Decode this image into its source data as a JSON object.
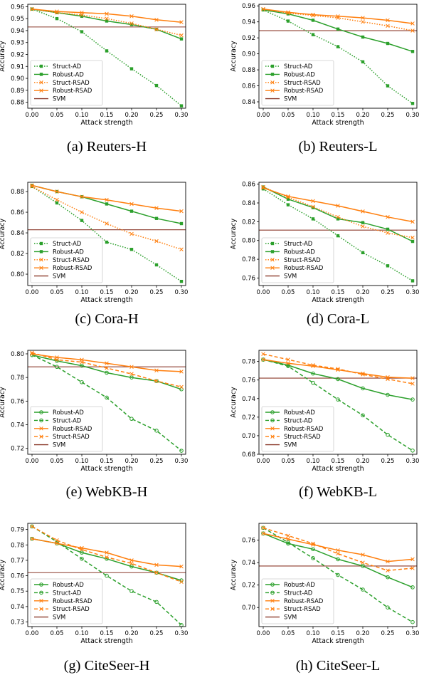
{
  "colors": {
    "green": "#2ca02c",
    "orange": "#ff7f0e",
    "svm": "#8c3a2b",
    "axis": "#000000"
  },
  "chart_data": [
    {
      "type": "line",
      "caption": "(a) Reuters-H",
      "xlabel": "Attack strength",
      "ylabel": "Accuracy",
      "x": [
        0.0,
        0.05,
        0.1,
        0.15,
        0.2,
        0.25,
        0.3
      ],
      "x_ticks": [
        "0.00",
        "0.05",
        "0.10",
        "0.15",
        "0.20",
        "0.25",
        "0.30"
      ],
      "ylim": [
        0.875,
        0.962
      ],
      "y_ticks": [
        0.88,
        0.89,
        0.9,
        0.91,
        0.92,
        0.93,
        0.94,
        0.95,
        0.96
      ],
      "y_tick_labels": [
        "0.88",
        "0.89",
        "0.90",
        "0.91",
        "0.92",
        "0.93",
        "0.94",
        "0.95",
        "0.96"
      ],
      "grid": false,
      "legend": "lower-left",
      "series": [
        {
          "name": "Struct-AD",
          "color": "#2ca02c",
          "style": "dotted",
          "marker": "square",
          "values": [
            0.958,
            0.95,
            0.939,
            0.923,
            0.908,
            0.894,
            0.877
          ]
        },
        {
          "name": "Robust-AD",
          "color": "#2ca02c",
          "style": "solid",
          "marker": "square",
          "values": [
            0.958,
            0.955,
            0.952,
            0.948,
            0.945,
            0.941,
            0.933
          ]
        },
        {
          "name": "Struct-RSAD",
          "color": "#ff7f0e",
          "style": "dotted",
          "marker": "x",
          "values": [
            0.958,
            0.955,
            0.953,
            0.95,
            0.946,
            0.941,
            0.936
          ]
        },
        {
          "name": "Robust-RSAD",
          "color": "#ff7f0e",
          "style": "solid",
          "marker": "x",
          "values": [
            0.958,
            0.956,
            0.955,
            0.954,
            0.952,
            0.949,
            0.947
          ]
        }
      ],
      "svm": {
        "name": "SVM",
        "value": 0.943
      }
    },
    {
      "type": "line",
      "caption": "(b) Reuters-L",
      "xlabel": "Attack strength",
      "ylabel": "Accuracy",
      "x": [
        0.0,
        0.05,
        0.1,
        0.15,
        0.2,
        0.25,
        0.3
      ],
      "x_ticks": [
        "0.00",
        "0.05",
        "0.10",
        "0.15",
        "0.20",
        "0.25",
        "0.30"
      ],
      "ylim": [
        0.832,
        0.962
      ],
      "y_ticks": [
        0.84,
        0.86,
        0.88,
        0.9,
        0.92,
        0.94,
        0.96
      ],
      "y_tick_labels": [
        "0.84",
        "0.86",
        "0.88",
        "0.90",
        "0.92",
        "0.94",
        "0.96"
      ],
      "grid": false,
      "legend": "lower-left",
      "series": [
        {
          "name": "Struct-AD",
          "color": "#2ca02c",
          "style": "dotted",
          "marker": "square",
          "values": [
            0.955,
            0.941,
            0.924,
            0.909,
            0.89,
            0.86,
            0.838
          ]
        },
        {
          "name": "Robust-AD",
          "color": "#2ca02c",
          "style": "solid",
          "marker": "square",
          "values": [
            0.955,
            0.95,
            0.942,
            0.931,
            0.921,
            0.913,
            0.903
          ]
        },
        {
          "name": "Struct-RSAD",
          "color": "#ff7f0e",
          "style": "dotted",
          "marker": "x",
          "values": [
            0.956,
            0.951,
            0.948,
            0.945,
            0.94,
            0.935,
            0.929
          ]
        },
        {
          "name": "Robust-RSAD",
          "color": "#ff7f0e",
          "style": "solid",
          "marker": "x",
          "values": [
            0.956,
            0.952,
            0.949,
            0.947,
            0.945,
            0.942,
            0.938
          ]
        }
      ],
      "svm": {
        "name": "SVM",
        "value": 0.929
      }
    },
    {
      "type": "line",
      "caption": "(c) Cora-H",
      "xlabel": "Attack strength",
      "ylabel": "Accuracy",
      "x": [
        0.0,
        0.05,
        0.1,
        0.15,
        0.2,
        0.25,
        0.3
      ],
      "x_ticks": [
        "0.00",
        "0.05",
        "0.10",
        "0.15",
        "0.20",
        "0.25",
        "0.30"
      ],
      "ylim": [
        0.789,
        0.889
      ],
      "y_ticks": [
        0.8,
        0.82,
        0.84,
        0.86,
        0.88
      ],
      "y_tick_labels": [
        "0.80",
        "0.82",
        "0.84",
        "0.86",
        "0.88"
      ],
      "grid": false,
      "legend": "lower-left",
      "series": [
        {
          "name": "Struct-AD",
          "color": "#2ca02c",
          "style": "dotted",
          "marker": "square",
          "values": [
            0.885,
            0.869,
            0.852,
            0.831,
            0.824,
            0.809,
            0.793
          ]
        },
        {
          "name": "Robust-AD",
          "color": "#2ca02c",
          "style": "solid",
          "marker": "square",
          "values": [
            0.886,
            0.88,
            0.875,
            0.868,
            0.861,
            0.854,
            0.849
          ]
        },
        {
          "name": "Struct-RSAD",
          "color": "#ff7f0e",
          "style": "dotted",
          "marker": "x",
          "values": [
            0.885,
            0.872,
            0.86,
            0.849,
            0.839,
            0.832,
            0.824
          ]
        },
        {
          "name": "Robust-RSAD",
          "color": "#ff7f0e",
          "style": "solid",
          "marker": "x",
          "values": [
            0.886,
            0.88,
            0.875,
            0.872,
            0.868,
            0.864,
            0.861
          ]
        }
      ],
      "svm": {
        "name": "SVM",
        "value": 0.843
      }
    },
    {
      "type": "line",
      "caption": "(d) Cora-L",
      "xlabel": "Attack strength",
      "ylabel": "Accuracy",
      "x": [
        0.0,
        0.05,
        0.1,
        0.15,
        0.2,
        0.25,
        0.3
      ],
      "x_ticks": [
        "0.00",
        "0.05",
        "0.10",
        "0.15",
        "0.20",
        "0.25",
        "0.30"
      ],
      "ylim": [
        0.752,
        0.862
      ],
      "y_ticks": [
        0.76,
        0.78,
        0.8,
        0.82,
        0.84,
        0.86
      ],
      "y_tick_labels": [
        "0.76",
        "0.78",
        "0.80",
        "0.82",
        "0.84",
        "0.86"
      ],
      "grid": false,
      "legend": "lower-left",
      "series": [
        {
          "name": "Struct-AD",
          "color": "#2ca02c",
          "style": "dotted",
          "marker": "square",
          "values": [
            0.855,
            0.838,
            0.823,
            0.805,
            0.787,
            0.773,
            0.757
          ]
        },
        {
          "name": "Robust-AD",
          "color": "#2ca02c",
          "style": "solid",
          "marker": "square",
          "values": [
            0.857,
            0.844,
            0.835,
            0.823,
            0.819,
            0.812,
            0.799
          ]
        },
        {
          "name": "Struct-RSAD",
          "color": "#ff7f0e",
          "style": "dotted",
          "marker": "x",
          "values": [
            0.857,
            0.846,
            0.836,
            0.825,
            0.815,
            0.808,
            0.803
          ]
        },
        {
          "name": "Robust-RSAD",
          "color": "#ff7f0e",
          "style": "solid",
          "marker": "x",
          "values": [
            0.856,
            0.847,
            0.842,
            0.837,
            0.831,
            0.825,
            0.82
          ]
        }
      ],
      "svm": {
        "name": "SVM",
        "value": 0.811
      }
    },
    {
      "type": "line",
      "caption": "(e) WebKB-H",
      "xlabel": "Attack strength",
      "ylabel": "Accuracy",
      "x": [
        0.0,
        0.05,
        0.1,
        0.15,
        0.2,
        0.25,
        0.3
      ],
      "x_ticks": [
        "0.00",
        "0.05",
        "0.10",
        "0.15",
        "0.20",
        "0.25",
        "0.30"
      ],
      "ylim": [
        0.715,
        0.803
      ],
      "y_ticks": [
        0.72,
        0.74,
        0.76,
        0.78,
        0.8
      ],
      "y_tick_labels": [
        "0.72",
        "0.74",
        "0.76",
        "0.78",
        "0.80"
      ],
      "grid": false,
      "legend": "lower-left",
      "series": [
        {
          "name": "Robust-AD",
          "color": "#2ca02c",
          "style": "solid",
          "marker": "circle",
          "values": [
            0.799,
            0.794,
            0.79,
            0.784,
            0.78,
            0.777,
            0.77
          ]
        },
        {
          "name": "Struct-AD",
          "color": "#2ca02c",
          "style": "dashed",
          "marker": "circle",
          "values": [
            0.799,
            0.789,
            0.776,
            0.763,
            0.745,
            0.735,
            0.718
          ]
        },
        {
          "name": "Robust-RSAD",
          "color": "#ff7f0e",
          "style": "solid",
          "marker": "x",
          "values": [
            0.8,
            0.797,
            0.795,
            0.792,
            0.789,
            0.786,
            0.785
          ]
        },
        {
          "name": "Struct-RSAD",
          "color": "#ff7f0e",
          "style": "dashed",
          "marker": "x",
          "values": [
            0.801,
            0.795,
            0.793,
            0.788,
            0.783,
            0.777,
            0.772
          ]
        }
      ],
      "svm": {
        "name": "SVM",
        "value": 0.789
      }
    },
    {
      "type": "line",
      "caption": "(f) WebKB-L",
      "xlabel": "Attack strength",
      "ylabel": "Accuracy",
      "x": [
        0.0,
        0.05,
        0.1,
        0.15,
        0.2,
        0.25,
        0.3
      ],
      "x_ticks": [
        "0.00",
        "0.05",
        "0.10",
        "0.15",
        "0.20",
        "0.25",
        "0.30"
      ],
      "ylim": [
        0.68,
        0.792
      ],
      "y_ticks": [
        0.68,
        0.7,
        0.72,
        0.74,
        0.76,
        0.78
      ],
      "y_tick_labels": [
        "0.68",
        "0.70",
        "0.72",
        "0.74",
        "0.76",
        "0.78"
      ],
      "grid": false,
      "legend": "lower-left",
      "series": [
        {
          "name": "Robust-AD",
          "color": "#2ca02c",
          "style": "solid",
          "marker": "circle",
          "values": [
            0.782,
            0.776,
            0.767,
            0.761,
            0.751,
            0.744,
            0.739
          ]
        },
        {
          "name": "Struct-AD",
          "color": "#2ca02c",
          "style": "dashed",
          "marker": "circle",
          "values": [
            0.782,
            0.775,
            0.757,
            0.739,
            0.722,
            0.701,
            0.684
          ]
        },
        {
          "name": "Robust-RSAD",
          "color": "#ff7f0e",
          "style": "solid",
          "marker": "x",
          "values": [
            0.782,
            0.778,
            0.775,
            0.771,
            0.767,
            0.763,
            0.762
          ]
        },
        {
          "name": "Struct-RSAD",
          "color": "#ff7f0e",
          "style": "dashed",
          "marker": "x",
          "values": [
            0.788,
            0.782,
            0.776,
            0.772,
            0.766,
            0.761,
            0.756
          ]
        }
      ],
      "svm": {
        "name": "SVM",
        "value": 0.762
      }
    },
    {
      "type": "line",
      "caption": "(g) CiteSeer-H",
      "xlabel": "Attack strength",
      "ylabel": "Accuracy",
      "x": [
        0.0,
        0.05,
        0.1,
        0.15,
        0.2,
        0.25,
        0.3
      ],
      "x_ticks": [
        "0.00",
        "0.05",
        "0.10",
        "0.15",
        "0.20",
        "0.25",
        "0.30"
      ],
      "ylim": [
        0.727,
        0.794
      ],
      "y_ticks": [
        0.73,
        0.74,
        0.75,
        0.76,
        0.77,
        0.78,
        0.79
      ],
      "y_tick_labels": [
        "0.73",
        "0.74",
        "0.75",
        "0.76",
        "0.77",
        "0.78",
        "0.79"
      ],
      "grid": false,
      "legend": "lower-left",
      "series": [
        {
          "name": "Robust-AD",
          "color": "#2ca02c",
          "style": "solid",
          "marker": "circle",
          "values": [
            0.784,
            0.781,
            0.775,
            0.771,
            0.766,
            0.762,
            0.757
          ]
        },
        {
          "name": "Struct-AD",
          "color": "#2ca02c",
          "style": "dashed",
          "marker": "circle",
          "values": [
            0.792,
            0.782,
            0.771,
            0.76,
            0.75,
            0.743,
            0.728
          ]
        },
        {
          "name": "Robust-RSAD",
          "color": "#ff7f0e",
          "style": "solid",
          "marker": "x",
          "values": [
            0.784,
            0.781,
            0.778,
            0.775,
            0.77,
            0.767,
            0.766
          ]
        },
        {
          "name": "Struct-RSAD",
          "color": "#ff7f0e",
          "style": "dashed",
          "marker": "x",
          "values": [
            0.792,
            0.783,
            0.777,
            0.772,
            0.768,
            0.762,
            0.756
          ]
        }
      ],
      "svm": {
        "name": "SVM",
        "value": 0.762
      }
    },
    {
      "type": "line",
      "caption": "(h) CiteSeer-L",
      "xlabel": "Attack strength",
      "ylabel": "Accuracy",
      "x": [
        0.0,
        0.05,
        0.1,
        0.15,
        0.2,
        0.25,
        0.3
      ],
      "x_ticks": [
        "0.00",
        "0.05",
        "0.10",
        "0.15",
        "0.20",
        "0.25",
        "0.30"
      ],
      "ylim": [
        0.683,
        0.775
      ],
      "y_ticks": [
        0.7,
        0.72,
        0.74,
        0.76
      ],
      "y_tick_labels": [
        "0.70",
        "0.72",
        "0.74",
        "0.76"
      ],
      "grid": false,
      "legend": "lower-left",
      "series": [
        {
          "name": "Robust-AD",
          "color": "#2ca02c",
          "style": "solid",
          "marker": "circle",
          "values": [
            0.766,
            0.757,
            0.752,
            0.743,
            0.737,
            0.727,
            0.718
          ]
        },
        {
          "name": "Struct-AD",
          "color": "#2ca02c",
          "style": "dashed",
          "marker": "circle",
          "values": [
            0.771,
            0.758,
            0.744,
            0.729,
            0.716,
            0.7,
            0.687
          ]
        },
        {
          "name": "Robust-RSAD",
          "color": "#ff7f0e",
          "style": "solid",
          "marker": "x",
          "values": [
            0.766,
            0.761,
            0.756,
            0.751,
            0.747,
            0.741,
            0.743
          ]
        },
        {
          "name": "Struct-RSAD",
          "color": "#ff7f0e",
          "style": "dashed",
          "marker": "x",
          "values": [
            0.771,
            0.764,
            0.757,
            0.748,
            0.74,
            0.733,
            0.735
          ]
        }
      ],
      "svm": {
        "name": "SVM",
        "value": 0.737
      }
    }
  ]
}
